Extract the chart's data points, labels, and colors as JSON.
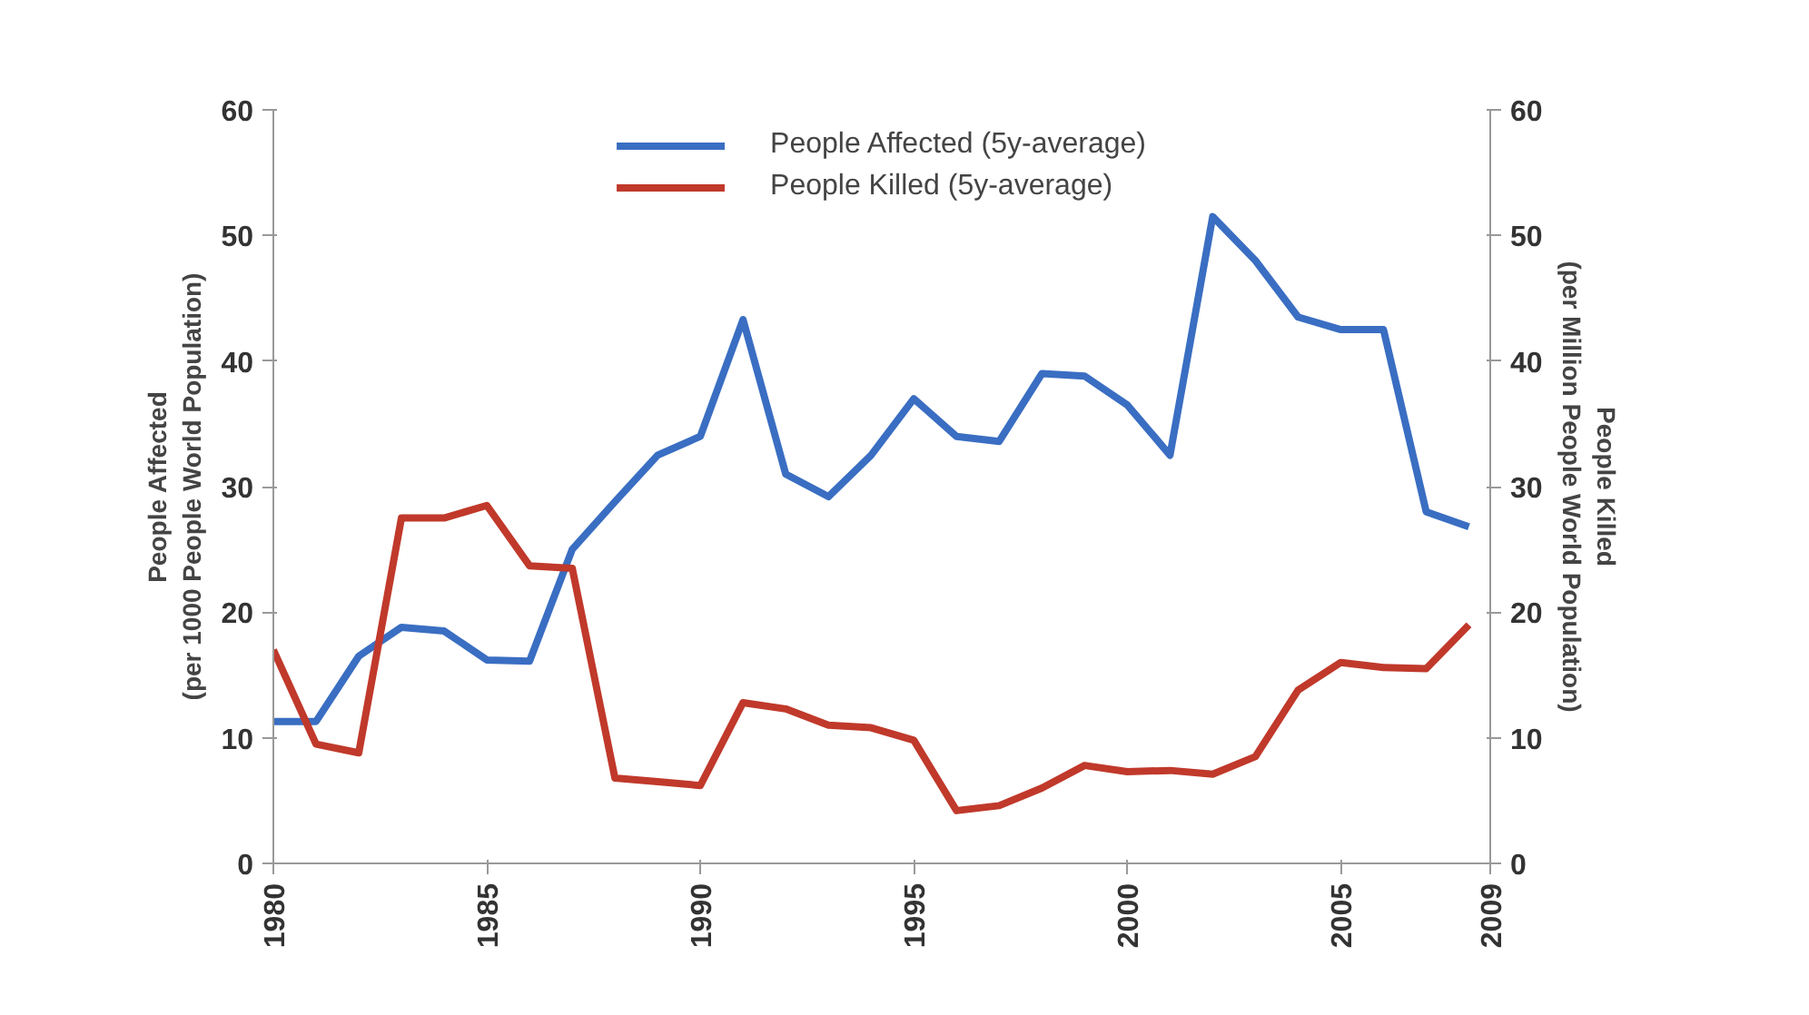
{
  "chart_data": {
    "type": "line",
    "ylabel": "People Affected\n(per 1000 People World Population)",
    "y2label": "People Killed\n(per Million People World Population)",
    "x": [
      1980,
      1981,
      1982,
      1983,
      1984,
      1985,
      1986,
      1987,
      1988,
      1989,
      1990,
      1991,
      1992,
      1993,
      1994,
      1995,
      1996,
      1997,
      1998,
      1999,
      2000,
      2001,
      2002,
      2003,
      2004,
      2005,
      2006,
      2007,
      2008
    ],
    "series": [
      {
        "name": "People Affected (5y-average)",
        "color": "#3a6ec2",
        "values": [
          11.3,
          11.3,
          16.5,
          18.8,
          18.5,
          16.2,
          16.1,
          25,
          28.8,
          32.5,
          34,
          43.3,
          31,
          29.2,
          32.5,
          37,
          34,
          33.6,
          39,
          38.8,
          36.5,
          32.5,
          51.5,
          48,
          43.5,
          42.5,
          42.5,
          28,
          26.8
        ]
      },
      {
        "name": "People Killed (5y-average)",
        "color": "#c0392b",
        "values": [
          17,
          9.5,
          8.8,
          27.5,
          27.5,
          28.5,
          23.7,
          23.5,
          6.8,
          6.5,
          6.2,
          12.8,
          12.3,
          11,
          10.8,
          9.8,
          4.2,
          4.6,
          6,
          7.8,
          7.3,
          7.4,
          7.1,
          8.5,
          13.8,
          16,
          15.6,
          15.5,
          19
        ]
      }
    ],
    "xlim": [
      1980,
      2008.5
    ],
    "xticks": [
      1980,
      1985,
      1990,
      1995,
      2000,
      2005,
      {
        "value": 2008.5,
        "label": "2009"
      }
    ],
    "ylim": [
      0,
      60
    ],
    "yticks": [
      0,
      10,
      20,
      30,
      40,
      50,
      60
    ],
    "y2lim": [
      0,
      60
    ],
    "y2ticks": [
      0,
      10,
      20,
      30,
      40,
      50,
      60
    ],
    "grid": false,
    "legend": "top",
    "marker": "none",
    "line_style": "solid"
  }
}
